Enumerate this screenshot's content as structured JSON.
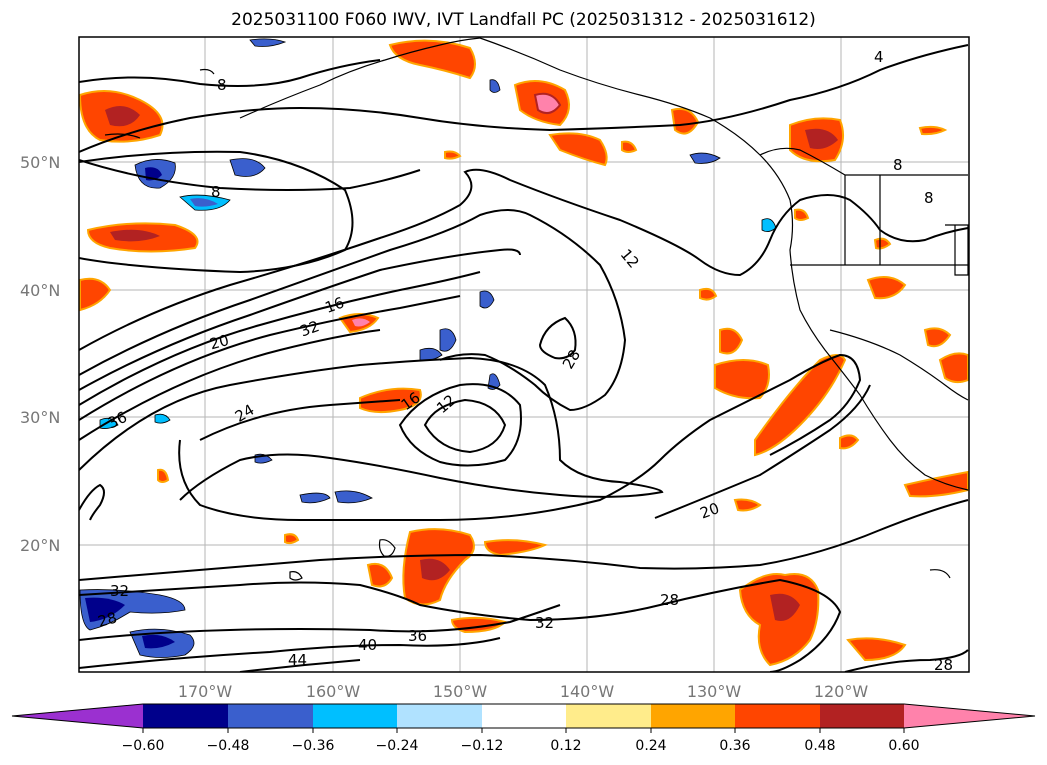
{
  "title": "2025031100 F060 IWV, IVT Landfall PC (2025031312 - 2025031612)",
  "lat_labels": [
    "50°N",
    "40°N",
    "30°N",
    "20°N"
  ],
  "lon_labels": [
    "170°W",
    "160°W",
    "150°W",
    "140°W",
    "130°W",
    "120°W"
  ],
  "contour_labels": [
    "4",
    "8",
    "8",
    "8",
    "8",
    "12",
    "12",
    "16",
    "16",
    "20",
    "20",
    "24",
    "28",
    "28",
    "28",
    "28",
    "32",
    "32",
    "32",
    "36",
    "36",
    "40",
    "44"
  ],
  "colorbar": {
    "ticks": [
      "−0.60",
      "−0.48",
      "−0.36",
      "−0.24",
      "−0.12",
      "0.12",
      "0.24",
      "0.36",
      "0.48",
      "0.60"
    ],
    "colors": [
      "#9b30d0",
      "#00008b",
      "#3a5fcd",
      "#00bfff",
      "#b0e2ff",
      "#ffffff",
      "#ffec8b",
      "#ffa500",
      "#ff4500",
      "#b22222",
      "#ff82ab"
    ]
  }
}
